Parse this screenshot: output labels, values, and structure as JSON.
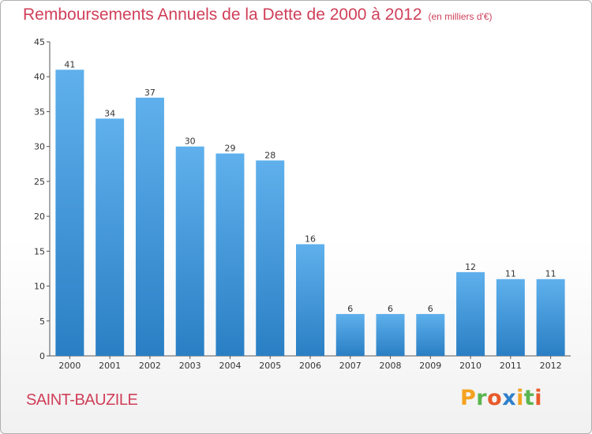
{
  "chart_data": {
    "type": "bar",
    "title": "Remboursements Annuels de la Dette de 2000 à 2012",
    "subtitle": "(en milliers d'€)",
    "categories": [
      "2000",
      "2001",
      "2002",
      "2003",
      "2004",
      "2005",
      "2006",
      "2007",
      "2008",
      "2009",
      "2010",
      "2011",
      "2012"
    ],
    "values": [
      41,
      34,
      37,
      30,
      29,
      28,
      16,
      6,
      6,
      6,
      12,
      11,
      11
    ],
    "ylim": [
      0,
      45
    ],
    "yticks": [
      0,
      5,
      10,
      15,
      20,
      25,
      30,
      35,
      40,
      45
    ],
    "xlabel": "",
    "ylabel": "",
    "grid": false,
    "legend": "none",
    "bar_color_top": "#5fb0ec",
    "bar_color_bottom": "#2a7fc4"
  },
  "footer": {
    "town": "SAINT-BAUZILE",
    "logo_text": "Proxiti",
    "logo_colors": [
      "#f4a21f",
      "#5ab54f",
      "#e85b2a",
      "#2f7fcb",
      "#f4a21f",
      "#5ab54f",
      "#e85b2a"
    ]
  },
  "colors": {
    "title": "#d0405a",
    "axis": "#555555"
  }
}
